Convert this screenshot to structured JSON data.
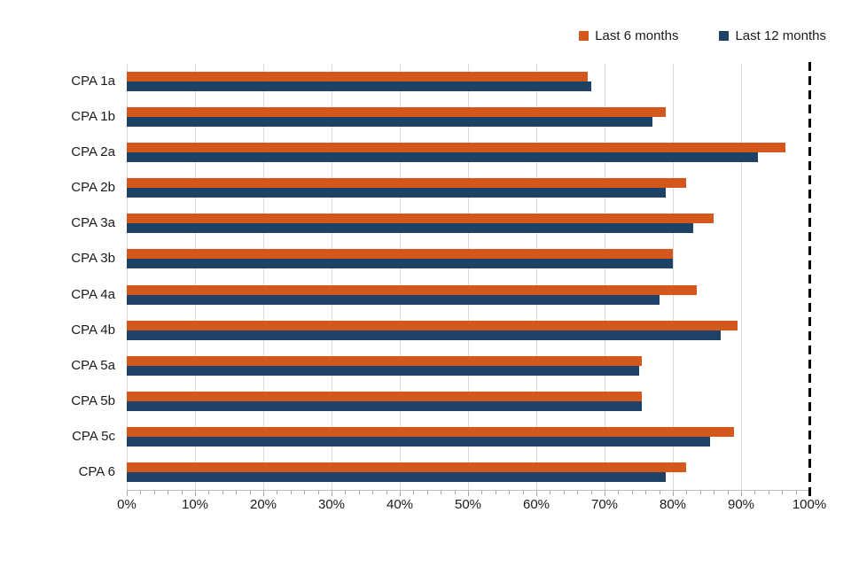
{
  "chart_data": {
    "type": "bar",
    "orientation": "horizontal",
    "title": "",
    "xlabel": "",
    "ylabel": "",
    "categories": [
      "CPA 1a",
      "CPA 1b",
      "CPA 2a",
      "CPA 2b",
      "CPA 3a",
      "CPA 3b",
      "CPA 4a",
      "CPA 4b",
      "CPA 5a",
      "CPA 5b",
      "CPA 5c",
      "CPA 6"
    ],
    "series": [
      {
        "name": "Last 6 months",
        "color": "#d4571b",
        "values": [
          67.5,
          79,
          96.5,
          82,
          86,
          80,
          83.5,
          89.5,
          75.5,
          75.5,
          89,
          82
        ]
      },
      {
        "name": "Last 12 months",
        "color": "#1e4265",
        "values": [
          68,
          77,
          92.5,
          79,
          83,
          80,
          78,
          87,
          75,
          75.5,
          85.5,
          79
        ]
      }
    ],
    "xlim": [
      0,
      100
    ],
    "x_major_step": 10,
    "x_minor_step": 2,
    "x_tick_labels": [
      "0%",
      "10%",
      "20%",
      "30%",
      "40%",
      "50%",
      "60%",
      "70%",
      "80%",
      "90%",
      "100%"
    ],
    "grid": "vertical-major",
    "legend_position": "top-right",
    "reference_line": {
      "x": 100,
      "style": "dashed",
      "color": "#000000"
    }
  },
  "colors": {
    "background": "#ffffff",
    "grid": "#d9d9d9",
    "axis": "#bfbfbf",
    "tick": "#a6a6a6",
    "text": "#1a1a1a"
  }
}
